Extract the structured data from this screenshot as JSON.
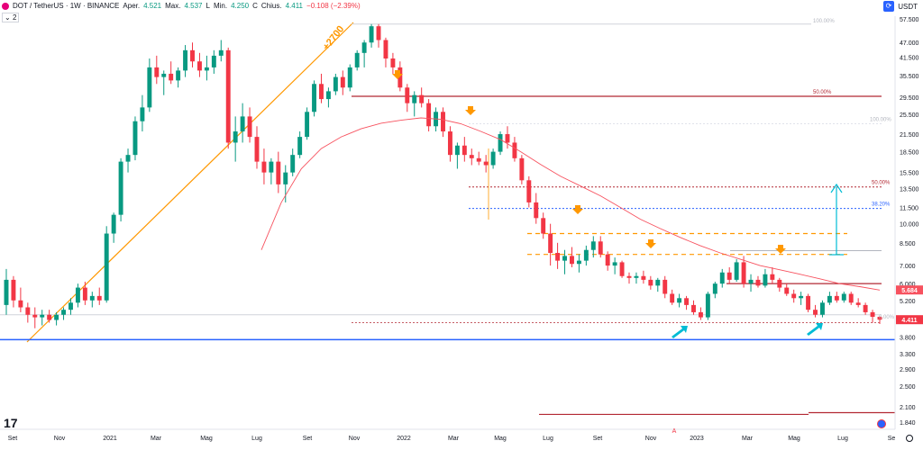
{
  "header": {
    "symbol": "DOT / TetherUS · 1W · BINANCE",
    "open_label": "Aper.",
    "open_value": "4.521",
    "high_label": "Max.",
    "high_value": "4.537",
    "low_label": "L",
    "low_label_alt": "Min.",
    "low_value": "4.250",
    "close_label": "C",
    "close_label_alt": "Chius.",
    "close_value": "4.411",
    "change": "−0.108 (−2.39%)",
    "indicator_count": "2",
    "currency": "USDT"
  },
  "colors": {
    "up": "#089981",
    "down": "#f23645",
    "ma": "#f7525f",
    "fib": "#ff9800",
    "level_red": "#b22833",
    "level_blue": "#2962ff",
    "cyan": "#00bcd4"
  },
  "chart_data": {
    "type": "candlestick",
    "scale": "log",
    "y_ticks": [
      "57.500",
      "47.000",
      "41.500",
      "35.500",
      "29.500",
      "25.500",
      "21.500",
      "18.500",
      "15.500",
      "13.500",
      "11.500",
      "10.000",
      "8.500",
      "7.000",
      "6.000",
      "5.200",
      "4.500",
      "3.800",
      "3.300",
      "2.900",
      "2.500",
      "2.100",
      "1.840"
    ],
    "y_ticks_values": [
      57.5,
      47,
      41.5,
      35.5,
      29.5,
      25.5,
      21.5,
      18.5,
      15.5,
      13.5,
      11.5,
      10,
      8.5,
      7,
      6,
      5.2,
      4.5,
      3.8,
      3.3,
      2.9,
      2.5,
      2.1,
      1.84
    ],
    "x_ticks": [
      "Set",
      "Nov",
      "2021",
      "Mar",
      "Mag",
      "Lug",
      "Set",
      "Nov",
      "2022",
      "Mar",
      "Mag",
      "Lug",
      "Set",
      "Nov",
      "2023",
      "Mar",
      "Mag",
      "Lug",
      "Se"
    ],
    "last_price": "4.411",
    "ma_value": "5.684",
    "candles_ohlc": [
      [
        5.0,
        6.8,
        4.6,
        6.2
      ],
      [
        6.2,
        6.4,
        4.9,
        5.2
      ],
      [
        5.2,
        5.8,
        4.7,
        4.9
      ],
      [
        4.9,
        5.1,
        4.3,
        4.6
      ],
      [
        4.6,
        4.9,
        4.1,
        4.5
      ],
      [
        4.5,
        4.8,
        4.2,
        4.6
      ],
      [
        4.6,
        4.8,
        4.3,
        4.4
      ],
      [
        4.4,
        4.7,
        4.2,
        4.6
      ],
      [
        4.6,
        4.9,
        4.4,
        4.8
      ],
      [
        4.8,
        5.3,
        4.6,
        5.1
      ],
      [
        5.1,
        6.0,
        4.9,
        5.8
      ],
      [
        5.8,
        6.1,
        5.0,
        5.2
      ],
      [
        5.2,
        5.6,
        4.9,
        5.4
      ],
      [
        5.4,
        5.8,
        5.0,
        5.2
      ],
      [
        5.2,
        9.8,
        5.1,
        9.2
      ],
      [
        9.2,
        11.0,
        8.5,
        10.8
      ],
      [
        10.8,
        17.5,
        10.2,
        17.0
      ],
      [
        17.0,
        19.0,
        15.5,
        18.0
      ],
      [
        18.0,
        25.0,
        17.2,
        24.0
      ],
      [
        24.0,
        30.0,
        22.0,
        27.0
      ],
      [
        27.0,
        41.0,
        26.0,
        38.0
      ],
      [
        38.0,
        42.0,
        33.0,
        35.0
      ],
      [
        35.0,
        37.0,
        30.0,
        36.0
      ],
      [
        36.0,
        40.0,
        33.0,
        34.0
      ],
      [
        34.0,
        38.0,
        32.0,
        37.0
      ],
      [
        37.0,
        46.0,
        35.0,
        44.0
      ],
      [
        44.0,
        47.0,
        38.0,
        40.0
      ],
      [
        40.0,
        43.0,
        35.0,
        37.0
      ],
      [
        37.0,
        42.0,
        34.0,
        38.0
      ],
      [
        38.0,
        44.0,
        36.0,
        42.0
      ],
      [
        42.0,
        48.0,
        40.0,
        44.0
      ],
      [
        44.0,
        45.0,
        19.0,
        20.0
      ],
      [
        20.0,
        25.0,
        17.0,
        22.0
      ],
      [
        22.0,
        28.0,
        20.0,
        25.0
      ],
      [
        25.0,
        27.0,
        20.0,
        21.0
      ],
      [
        21.0,
        23.0,
        16.0,
        17.0
      ],
      [
        17.0,
        19.0,
        14.0,
        15.5
      ],
      [
        15.5,
        17.5,
        14.0,
        17.0
      ],
      [
        17.0,
        18.5,
        13.0,
        14.0
      ],
      [
        14.0,
        16.5,
        12.0,
        15.5
      ],
      [
        15.5,
        19.0,
        15.0,
        18.0
      ],
      [
        18.0,
        22.0,
        17.5,
        21.0
      ],
      [
        21.0,
        27.0,
        20.5,
        26.0
      ],
      [
        26.0,
        34.0,
        25.0,
        33.0
      ],
      [
        33.0,
        36.0,
        28.0,
        29.0
      ],
      [
        29.0,
        32.0,
        27.0,
        31.0
      ],
      [
        31.0,
        36.0,
        30.0,
        35.0
      ],
      [
        35.0,
        37.0,
        30.0,
        32.0
      ],
      [
        32.0,
        39.0,
        31.0,
        38.0
      ],
      [
        38.0,
        44.0,
        37.0,
        43.0
      ],
      [
        43.0,
        48.0,
        38.0,
        47.0
      ],
      [
        47.0,
        55.0,
        45.0,
        54.0
      ],
      [
        54.0,
        55.0,
        45.0,
        48.0
      ],
      [
        48.0,
        49.0,
        38.0,
        41.0
      ],
      [
        41.0,
        43.0,
        36.0,
        38.0
      ],
      [
        38.0,
        40.0,
        31.0,
        32.0
      ],
      [
        32.0,
        33.0,
        26.0,
        28.0
      ],
      [
        28.0,
        31.0,
        25.0,
        30.0
      ],
      [
        30.0,
        32.0,
        27.0,
        28.0
      ],
      [
        28.0,
        29.0,
        22.0,
        23.0
      ],
      [
        23.0,
        27.0,
        22.0,
        26.0
      ],
      [
        26.0,
        27.0,
        21.0,
        22.0
      ],
      [
        22.0,
        23.0,
        17.0,
        18.0
      ],
      [
        18.0,
        20.0,
        16.0,
        19.5
      ],
      [
        19.5,
        21.0,
        17.0,
        18.0
      ],
      [
        18.0,
        19.0,
        16.5,
        17.5
      ],
      [
        17.5,
        18.5,
        16.5,
        17.0
      ],
      [
        17.0,
        18.0,
        15.5,
        16.5
      ],
      [
        16.5,
        19.0,
        16.0,
        18.5
      ],
      [
        18.5,
        22.0,
        18.0,
        21.5
      ],
      [
        21.5,
        23.0,
        19.0,
        20.0
      ],
      [
        20.0,
        21.0,
        17.0,
        17.5
      ],
      [
        17.5,
        18.0,
        14.0,
        14.5
      ],
      [
        14.5,
        15.0,
        11.5,
        12.0
      ],
      [
        12.0,
        13.0,
        10.0,
        10.5
      ],
      [
        10.5,
        11.0,
        8.8,
        9.2
      ],
      [
        9.2,
        10.0,
        7.0,
        7.8
      ],
      [
        7.8,
        8.5,
        6.8,
        7.3
      ],
      [
        7.3,
        8.0,
        6.5,
        7.6
      ],
      [
        7.6,
        8.2,
        6.9,
        7.1
      ],
      [
        7.1,
        7.7,
        6.6,
        7.3
      ],
      [
        7.3,
        8.3,
        7.0,
        8.0
      ],
      [
        8.0,
        9.0,
        7.5,
        8.6
      ],
      [
        8.6,
        9.0,
        7.5,
        7.7
      ],
      [
        7.7,
        7.9,
        6.7,
        7.0
      ],
      [
        7.0,
        7.5,
        6.5,
        7.2
      ],
      [
        7.2,
        7.3,
        6.3,
        6.4
      ],
      [
        6.4,
        6.6,
        6.0,
        6.3
      ],
      [
        6.3,
        6.6,
        6.0,
        6.4
      ],
      [
        6.4,
        6.7,
        6.0,
        6.2
      ],
      [
        6.2,
        6.4,
        5.7,
        5.9
      ],
      [
        5.9,
        6.3,
        5.6,
        6.2
      ],
      [
        6.2,
        6.4,
        5.3,
        5.5
      ],
      [
        5.5,
        5.7,
        5.0,
        5.1
      ],
      [
        5.1,
        5.5,
        4.9,
        5.3
      ],
      [
        5.3,
        5.4,
        4.8,
        5.0
      ],
      [
        5.0,
        5.2,
        4.6,
        4.7
      ],
      [
        4.7,
        4.9,
        4.4,
        4.5
      ],
      [
        4.5,
        5.6,
        4.4,
        5.5
      ],
      [
        5.5,
        6.1,
        5.3,
        6.0
      ],
      [
        6.0,
        6.8,
        5.8,
        6.6
      ],
      [
        6.6,
        6.9,
        6.0,
        6.2
      ],
      [
        6.2,
        7.4,
        6.1,
        7.2
      ],
      [
        7.2,
        7.6,
        5.8,
        6.0
      ],
      [
        6.0,
        6.5,
        5.6,
        6.2
      ],
      [
        6.2,
        6.4,
        5.8,
        5.9
      ],
      [
        5.9,
        6.8,
        5.8,
        6.5
      ],
      [
        6.5,
        6.9,
        6.0,
        6.2
      ],
      [
        6.2,
        6.3,
        5.6,
        5.8
      ],
      [
        5.8,
        6.0,
        5.4,
        5.5
      ],
      [
        5.5,
        5.7,
        5.1,
        5.3
      ],
      [
        5.3,
        5.6,
        5.0,
        5.4
      ],
      [
        5.4,
        5.5,
        4.7,
        4.8
      ],
      [
        4.8,
        5.0,
        4.5,
        4.6
      ],
      [
        4.6,
        5.2,
        4.5,
        5.1
      ],
      [
        5.1,
        5.6,
        5.0,
        5.4
      ],
      [
        5.4,
        5.6,
        5.1,
        5.2
      ],
      [
        5.2,
        5.6,
        5.1,
        5.5
      ],
      [
        5.5,
        5.6,
        5.0,
        5.1
      ],
      [
        5.1,
        5.3,
        4.9,
        5.0
      ],
      [
        5.0,
        5.1,
        4.6,
        4.7
      ],
      [
        4.7,
        4.8,
        4.3,
        4.52
      ],
      [
        4.521,
        4.537,
        4.25,
        4.411
      ]
    ],
    "ma_series": [
      8.0,
      12.0,
      16.0,
      19.0,
      21.0,
      22.5,
      23.6,
      24.2,
      24.7,
      24.4,
      23.5,
      22.0,
      20.5,
      18.5,
      16.6,
      15.0,
      13.8,
      12.7,
      11.5,
      10.4,
      9.6,
      8.9,
      8.3,
      7.8,
      7.4,
      7.0,
      6.75,
      6.5,
      6.25,
      6.0,
      5.85,
      5.68
    ],
    "annotations": {
      "fib_label": "+2700",
      "fib_levels": [
        "100.00%",
        "50.00%",
        "100.00%",
        "50.00%",
        "38.20%",
        "0.00%"
      ],
      "circle_marker": "A"
    }
  }
}
